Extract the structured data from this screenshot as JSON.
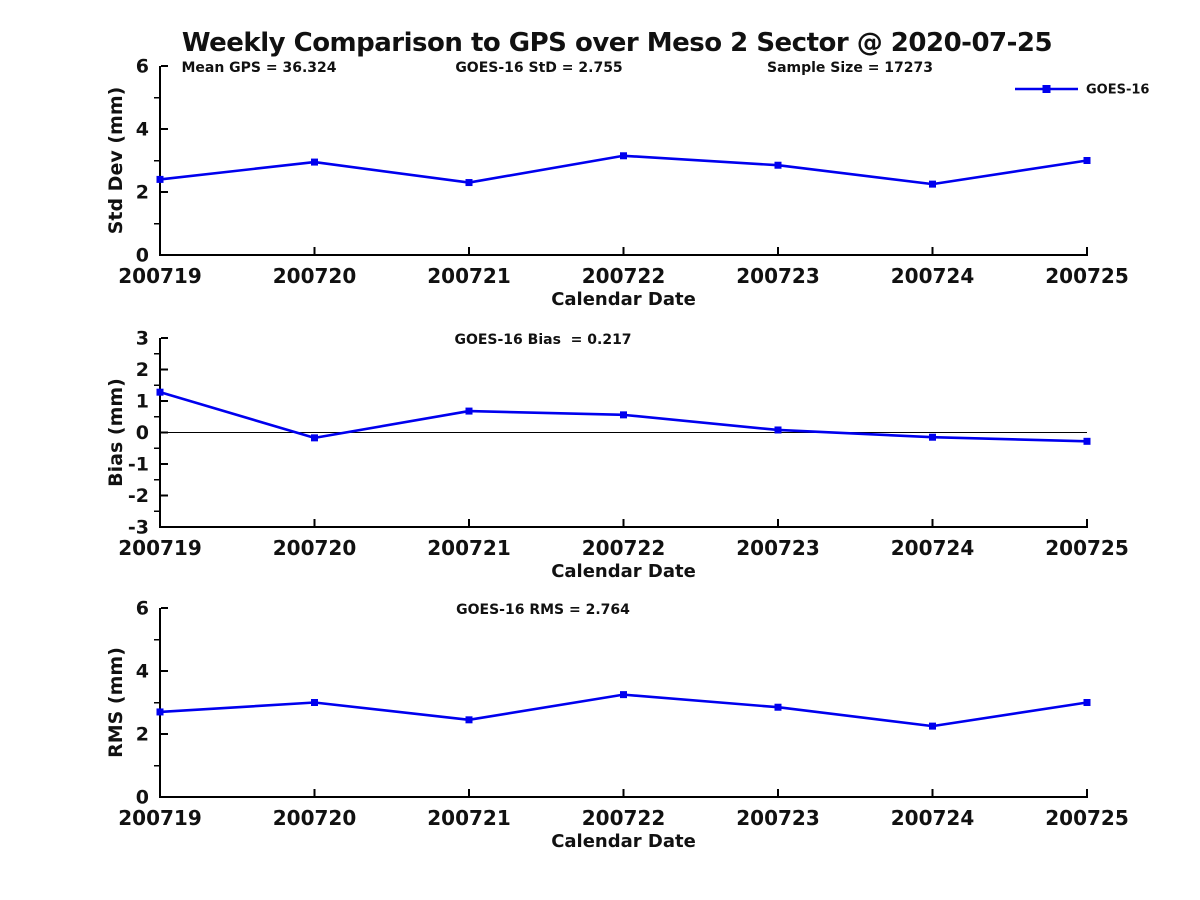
{
  "title": "Weekly Comparison to GPS over Meso 2 Sector @ 2020-07-25",
  "colors": {
    "series": "#0000EE",
    "axis": "#000000",
    "text": "#111111"
  },
  "legend": {
    "label": "GOES-16"
  },
  "chart_data": [
    {
      "type": "line",
      "name": "stddev",
      "title": "",
      "xlabel": "Calendar Date",
      "ylabel": "Std Dev (mm)",
      "categories": [
        "200719",
        "200720",
        "200721",
        "200722",
        "200723",
        "200724",
        "200725"
      ],
      "ylim": [
        0,
        6
      ],
      "yticks": [
        0,
        2,
        4,
        6
      ],
      "yminor": [
        1,
        3,
        5
      ],
      "grid": false,
      "legend_entries": [
        "GOES-16"
      ],
      "legend_position": "upper-right-outside",
      "show_legend": true,
      "zero_line": false,
      "annotations": [
        "Mean GPS = 36.324",
        "GOES-16 StD = 2.755",
        "Sample Size = 17273"
      ],
      "series": [
        {
          "name": "GOES-16",
          "marker": "square",
          "values": [
            2.4,
            2.95,
            2.3,
            3.15,
            2.85,
            2.25,
            3.0
          ]
        }
      ]
    },
    {
      "type": "line",
      "name": "bias",
      "title": "",
      "xlabel": "Calendar Date",
      "ylabel": "Bias (mm)",
      "categories": [
        "200719",
        "200720",
        "200721",
        "200722",
        "200723",
        "200724",
        "200725"
      ],
      "ylim": [
        -3,
        3
      ],
      "yticks": [
        -3,
        -2,
        -1,
        0,
        1,
        2,
        3
      ],
      "yminor": [
        -2.5,
        -1.5,
        -0.5,
        0.5,
        1.5,
        2.5
      ],
      "grid": false,
      "show_legend": false,
      "zero_line": true,
      "annotations": [
        "GOES-16 Bias  = 0.217"
      ],
      "series": [
        {
          "name": "GOES-16",
          "marker": "square",
          "values": [
            1.28,
            -0.17,
            0.68,
            0.56,
            0.08,
            -0.15,
            -0.28
          ]
        }
      ]
    },
    {
      "type": "line",
      "name": "rms",
      "title": "",
      "xlabel": "Calendar Date",
      "ylabel": "RMS (mm)",
      "categories": [
        "200719",
        "200720",
        "200721",
        "200722",
        "200723",
        "200724",
        "200725"
      ],
      "ylim": [
        0,
        6
      ],
      "yticks": [
        0,
        2,
        4,
        6
      ],
      "yminor": [
        1,
        3,
        5
      ],
      "grid": false,
      "show_legend": false,
      "zero_line": false,
      "annotations": [
        "GOES-16 RMS = 2.764"
      ],
      "series": [
        {
          "name": "GOES-16",
          "marker": "square",
          "values": [
            2.7,
            3.0,
            2.45,
            3.25,
            2.85,
            2.25,
            3.0
          ]
        }
      ]
    }
  ]
}
